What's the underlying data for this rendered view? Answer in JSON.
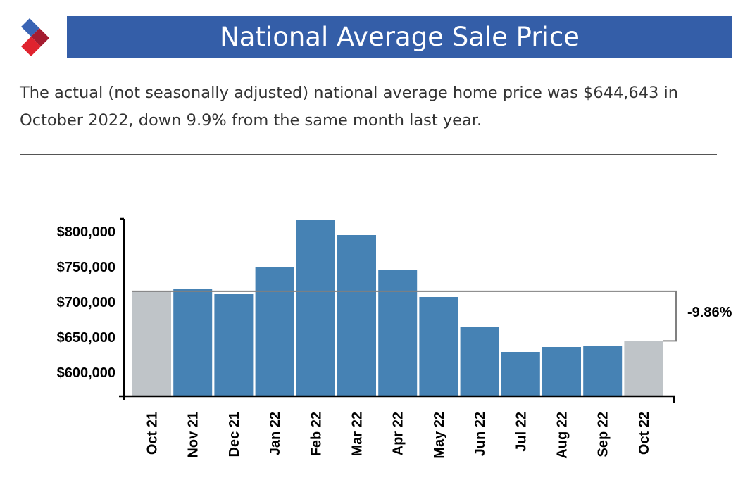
{
  "header": {
    "title": "National Average Sale Price",
    "logo_colors": [
      "#3a64b4",
      "#a51c30",
      "#e0232e"
    ]
  },
  "summary": "The actual (not seasonally adjusted) national average home price was $644,643 in October 2022, down 9.9% from the same month last year.",
  "colors": {
    "title_bg": "#345ea8",
    "bar": "#4682b4",
    "bar_highlight": "#bfc4c8",
    "bracket": "#808080"
  },
  "chart_data": {
    "type": "bar",
    "title": "National Average Sale Price",
    "xlabel": "",
    "ylabel": "",
    "categories": [
      "Oct 21",
      "Nov 21",
      "Dec 21",
      "Jan 22",
      "Feb 22",
      "Mar 22",
      "Apr 22",
      "May 22",
      "Jun 22",
      "Jul 22",
      "Aug 22",
      "Sep 22",
      "Oct 22"
    ],
    "values": [
      715150,
      719000,
      711000,
      749000,
      817000,
      795000,
      746000,
      707000,
      665000,
      629000,
      636000,
      638000,
      644643
    ],
    "highlighted": [
      "Oct 21",
      "Oct 22"
    ],
    "ylim": [
      566000,
      818000
    ],
    "yticks": [
      600000,
      650000,
      700000,
      750000,
      800000
    ],
    "ytick_labels": [
      "$600,000",
      "$650,000",
      "$700,000",
      "$750,000",
      "$800,000"
    ],
    "grid": false,
    "annotation": {
      "label": "-9.86%",
      "from": "Oct 21",
      "to": "Oct 22"
    }
  }
}
